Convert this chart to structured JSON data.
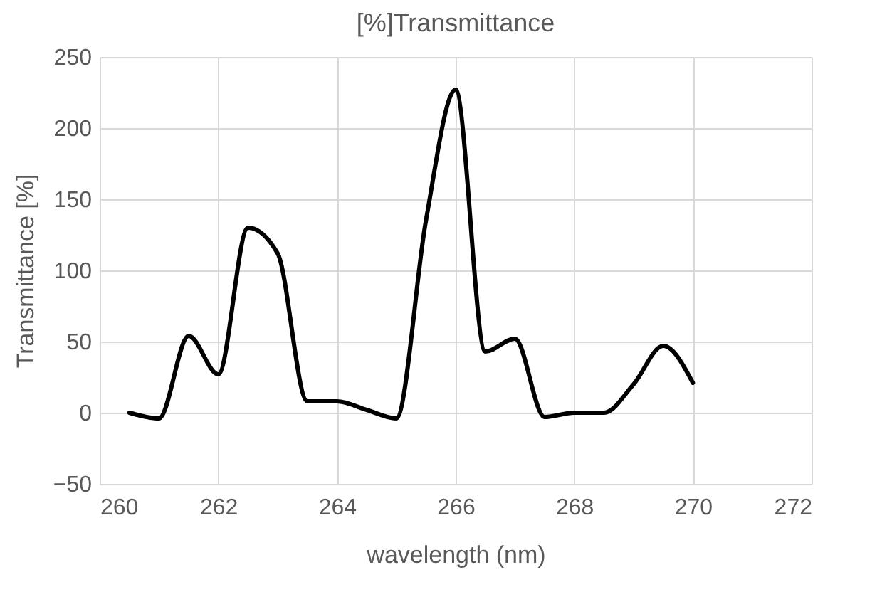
{
  "chart_data": {
    "type": "line",
    "title": "[%]Transmittance",
    "xlabel": "wavelength (nm)",
    "ylabel": "Transmittance [%]",
    "x": [
      260.5,
      261,
      261.5,
      262,
      262.5,
      263,
      263.5,
      264,
      264.5,
      265,
      265.5,
      266,
      266.5,
      267,
      267.5,
      268,
      268.5,
      269,
      269.5,
      270
    ],
    "series": [
      {
        "color": "#000000",
        "values": [
          0,
          -4,
          54,
          27,
          130,
          112,
          8,
          8,
          2,
          -4,
          135,
          227,
          43,
          52,
          -3,
          0,
          0,
          20,
          47,
          21
        ]
      }
    ],
    "xlim": [
      260,
      272
    ],
    "xticks": [
      260,
      262,
      264,
      266,
      268,
      270,
      272
    ],
    "ylim": [
      -50,
      250
    ],
    "yticks": [
      -50,
      0,
      50,
      100,
      150,
      200,
      250
    ],
    "grid": true,
    "marker": "none",
    "line_style": "solid"
  }
}
